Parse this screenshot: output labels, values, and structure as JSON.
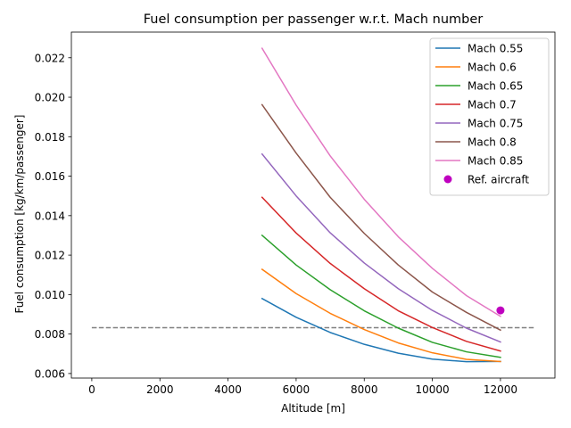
{
  "chart_data": {
    "type": "line",
    "title": "Fuel consumption per passenger w.r.t. Mach number",
    "xlabel": "Altitude [m]",
    "ylabel": "Fuel consumption [kg/km/passenger]",
    "xlim": [
      -600,
      13600
    ],
    "ylim": [
      0.00577,
      0.0233
    ],
    "xticks": [
      0,
      2000,
      4000,
      6000,
      8000,
      10000,
      12000
    ],
    "xtick_labels": [
      "0",
      "2000",
      "4000",
      "6000",
      "8000",
      "10000",
      "12000"
    ],
    "yticks": [
      0.006,
      0.008,
      0.01,
      0.012,
      0.014,
      0.016,
      0.018,
      0.02,
      0.022
    ],
    "ytick_labels": [
      "0.006",
      "0.008",
      "0.010",
      "0.012",
      "0.014",
      "0.016",
      "0.018",
      "0.020",
      "0.022"
    ],
    "grid": false,
    "legend_position": "top-right",
    "x": [
      5000,
      6000,
      7000,
      8000,
      9000,
      10000,
      11000,
      12000
    ],
    "series": [
      {
        "name": "Mach 0.55",
        "color": "#1f77b4",
        "values": [
          0.0098,
          0.00885,
          0.00808,
          0.00748,
          0.00703,
          0.00673,
          0.0066,
          0.00661
        ]
      },
      {
        "name": "Mach 0.6",
        "color": "#ff7f0e",
        "values": [
          0.01128,
          0.01005,
          0.00905,
          0.00823,
          0.00755,
          0.00705,
          0.00672,
          0.00661
        ]
      },
      {
        "name": "Mach 0.65",
        "color": "#2ca02c",
        "values": [
          0.013,
          0.0115,
          0.01025,
          0.00918,
          0.0083,
          0.00758,
          0.0071,
          0.00682
        ]
      },
      {
        "name": "Mach 0.7",
        "color": "#d62728",
        "values": [
          0.01493,
          0.01312,
          0.01158,
          0.0103,
          0.00918,
          0.00833,
          0.00763,
          0.00714
        ]
      },
      {
        "name": "Mach 0.75",
        "color": "#9467bd",
        "values": [
          0.01712,
          0.015,
          0.01313,
          0.0116,
          0.0103,
          0.0092,
          0.0083,
          0.0076
        ]
      },
      {
        "name": "Mach 0.8",
        "color": "#8c564b",
        "values": [
          0.01962,
          0.01717,
          0.01493,
          0.0131,
          0.0115,
          0.01013,
          0.0091,
          0.0082
        ]
      },
      {
        "name": "Mach 0.85",
        "color": "#e377c2",
        "values": [
          0.02248,
          0.0196,
          0.01703,
          0.01483,
          0.01293,
          0.01133,
          0.00995,
          0.0089
        ]
      }
    ],
    "reference_point": {
      "name": "Ref. aircraft",
      "x": 12000,
      "y": 0.0092,
      "color": "#bf00bf"
    },
    "reference_line": {
      "y": 0.00832,
      "x_range": [
        0,
        13000
      ],
      "color": "#808080",
      "style": "dashed"
    }
  }
}
